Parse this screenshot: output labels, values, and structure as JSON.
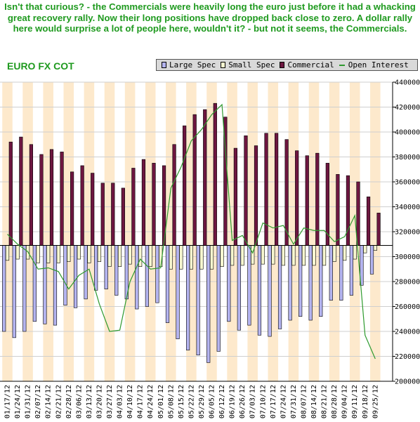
{
  "caption": "Isn't that curious? - the Commercials were heavily long the euro just before it had a whacking great recovery rally. Now their long positions have dropped back close to zero. A dollar rally here would surprise a lot of people here, wouldn't it? -  but not it seems, the Commercials.",
  "chart_data": {
    "type": "bar",
    "title": "EURO FX COT",
    "legend_position": "top-right",
    "grid": true,
    "ylim": [
      200000,
      440000
    ],
    "yticks": [
      200000,
      220000,
      240000,
      260000,
      280000,
      300000,
      320000,
      340000,
      360000,
      380000,
      400000,
      420000,
      440000
    ],
    "ytick_labels": [
      "200000",
      "220000",
      "240000",
      "260000",
      "280000",
      "300000",
      "320000",
      "340000",
      "360000",
      "380000",
      "400000",
      "420000",
      "440000"
    ],
    "baseline": 309000,
    "categories": [
      "01/17/12",
      "01/24/12",
      "01/31/12",
      "02/07/12",
      "02/14/12",
      "02/21/12",
      "02/28/12",
      "03/06/12",
      "03/13/12",
      "03/20/12",
      "03/27/12",
      "04/03/12",
      "04/10/12",
      "04/17/12",
      "04/24/12",
      "05/01/12",
      "05/08/12",
      "05/15/12",
      "05/22/12",
      "05/29/12",
      "06/05/12",
      "06/12/12",
      "06/19/12",
      "06/26/12",
      "07/03/12",
      "07/10/12",
      "07/17/12",
      "07/24/12",
      "07/31/12",
      "08/07/12",
      "08/14/12",
      "08/21/12",
      "08/28/12",
      "09/04/12",
      "09/11/12",
      "09/18/12",
      "09/25/12"
    ],
    "series": [
      {
        "name": "Large Spec",
        "kind": "bar",
        "color": "#b4b4f0",
        "values": [
          240000,
          235000,
          240000,
          248000,
          246000,
          245000,
          261000,
          259000,
          266000,
          273000,
          274000,
          269000,
          266000,
          258000,
          260000,
          263000,
          247000,
          234000,
          225000,
          221000,
          215000,
          224000,
          248000,
          241000,
          245000,
          237000,
          236000,
          242000,
          249000,
          252000,
          249000,
          252000,
          265000,
          265000,
          269000,
          277000,
          286000
        ]
      },
      {
        "name": "Small Spec",
        "kind": "bar",
        "color": "#f7f7d0",
        "values": [
          297000,
          298000,
          298000,
          295000,
          295000,
          295000,
          296000,
          298000,
          295000,
          296000,
          292000,
          292000,
          294000,
          292000,
          292000,
          292000,
          290000,
          290000,
          290000,
          290000,
          290000,
          292000,
          293000,
          293000,
          294000,
          294000,
          294000,
          293000,
          293000,
          293000,
          293000,
          293000,
          296000,
          297000,
          298000,
          303000,
          305000
        ]
      },
      {
        "name": "Commercial",
        "kind": "bar",
        "color": "#6d1640",
        "values": [
          392000,
          396000,
          390000,
          382000,
          386000,
          384000,
          368000,
          373000,
          367000,
          359000,
          359000,
          355000,
          371000,
          378000,
          375000,
          373000,
          390000,
          405000,
          414000,
          418000,
          423000,
          412000,
          387000,
          397000,
          389000,
          399000,
          399000,
          394000,
          385000,
          381000,
          383000,
          375000,
          366000,
          365000,
          360000,
          348000,
          335000
        ]
      },
      {
        "name": "Open Interest",
        "kind": "line",
        "color": "#2e9a2e",
        "values": [
          318000,
          310000,
          304000,
          290000,
          291000,
          288000,
          274000,
          285000,
          290000,
          262000,
          240000,
          241000,
          280000,
          298000,
          290000,
          291000,
          355000,
          372000,
          393000,
          402000,
          414000,
          422000,
          313000,
          317000,
          303000,
          327000,
          323000,
          325000,
          310000,
          323000,
          321000,
          321000,
          312000,
          316000,
          333000,
          237000,
          218000
        ]
      }
    ]
  }
}
